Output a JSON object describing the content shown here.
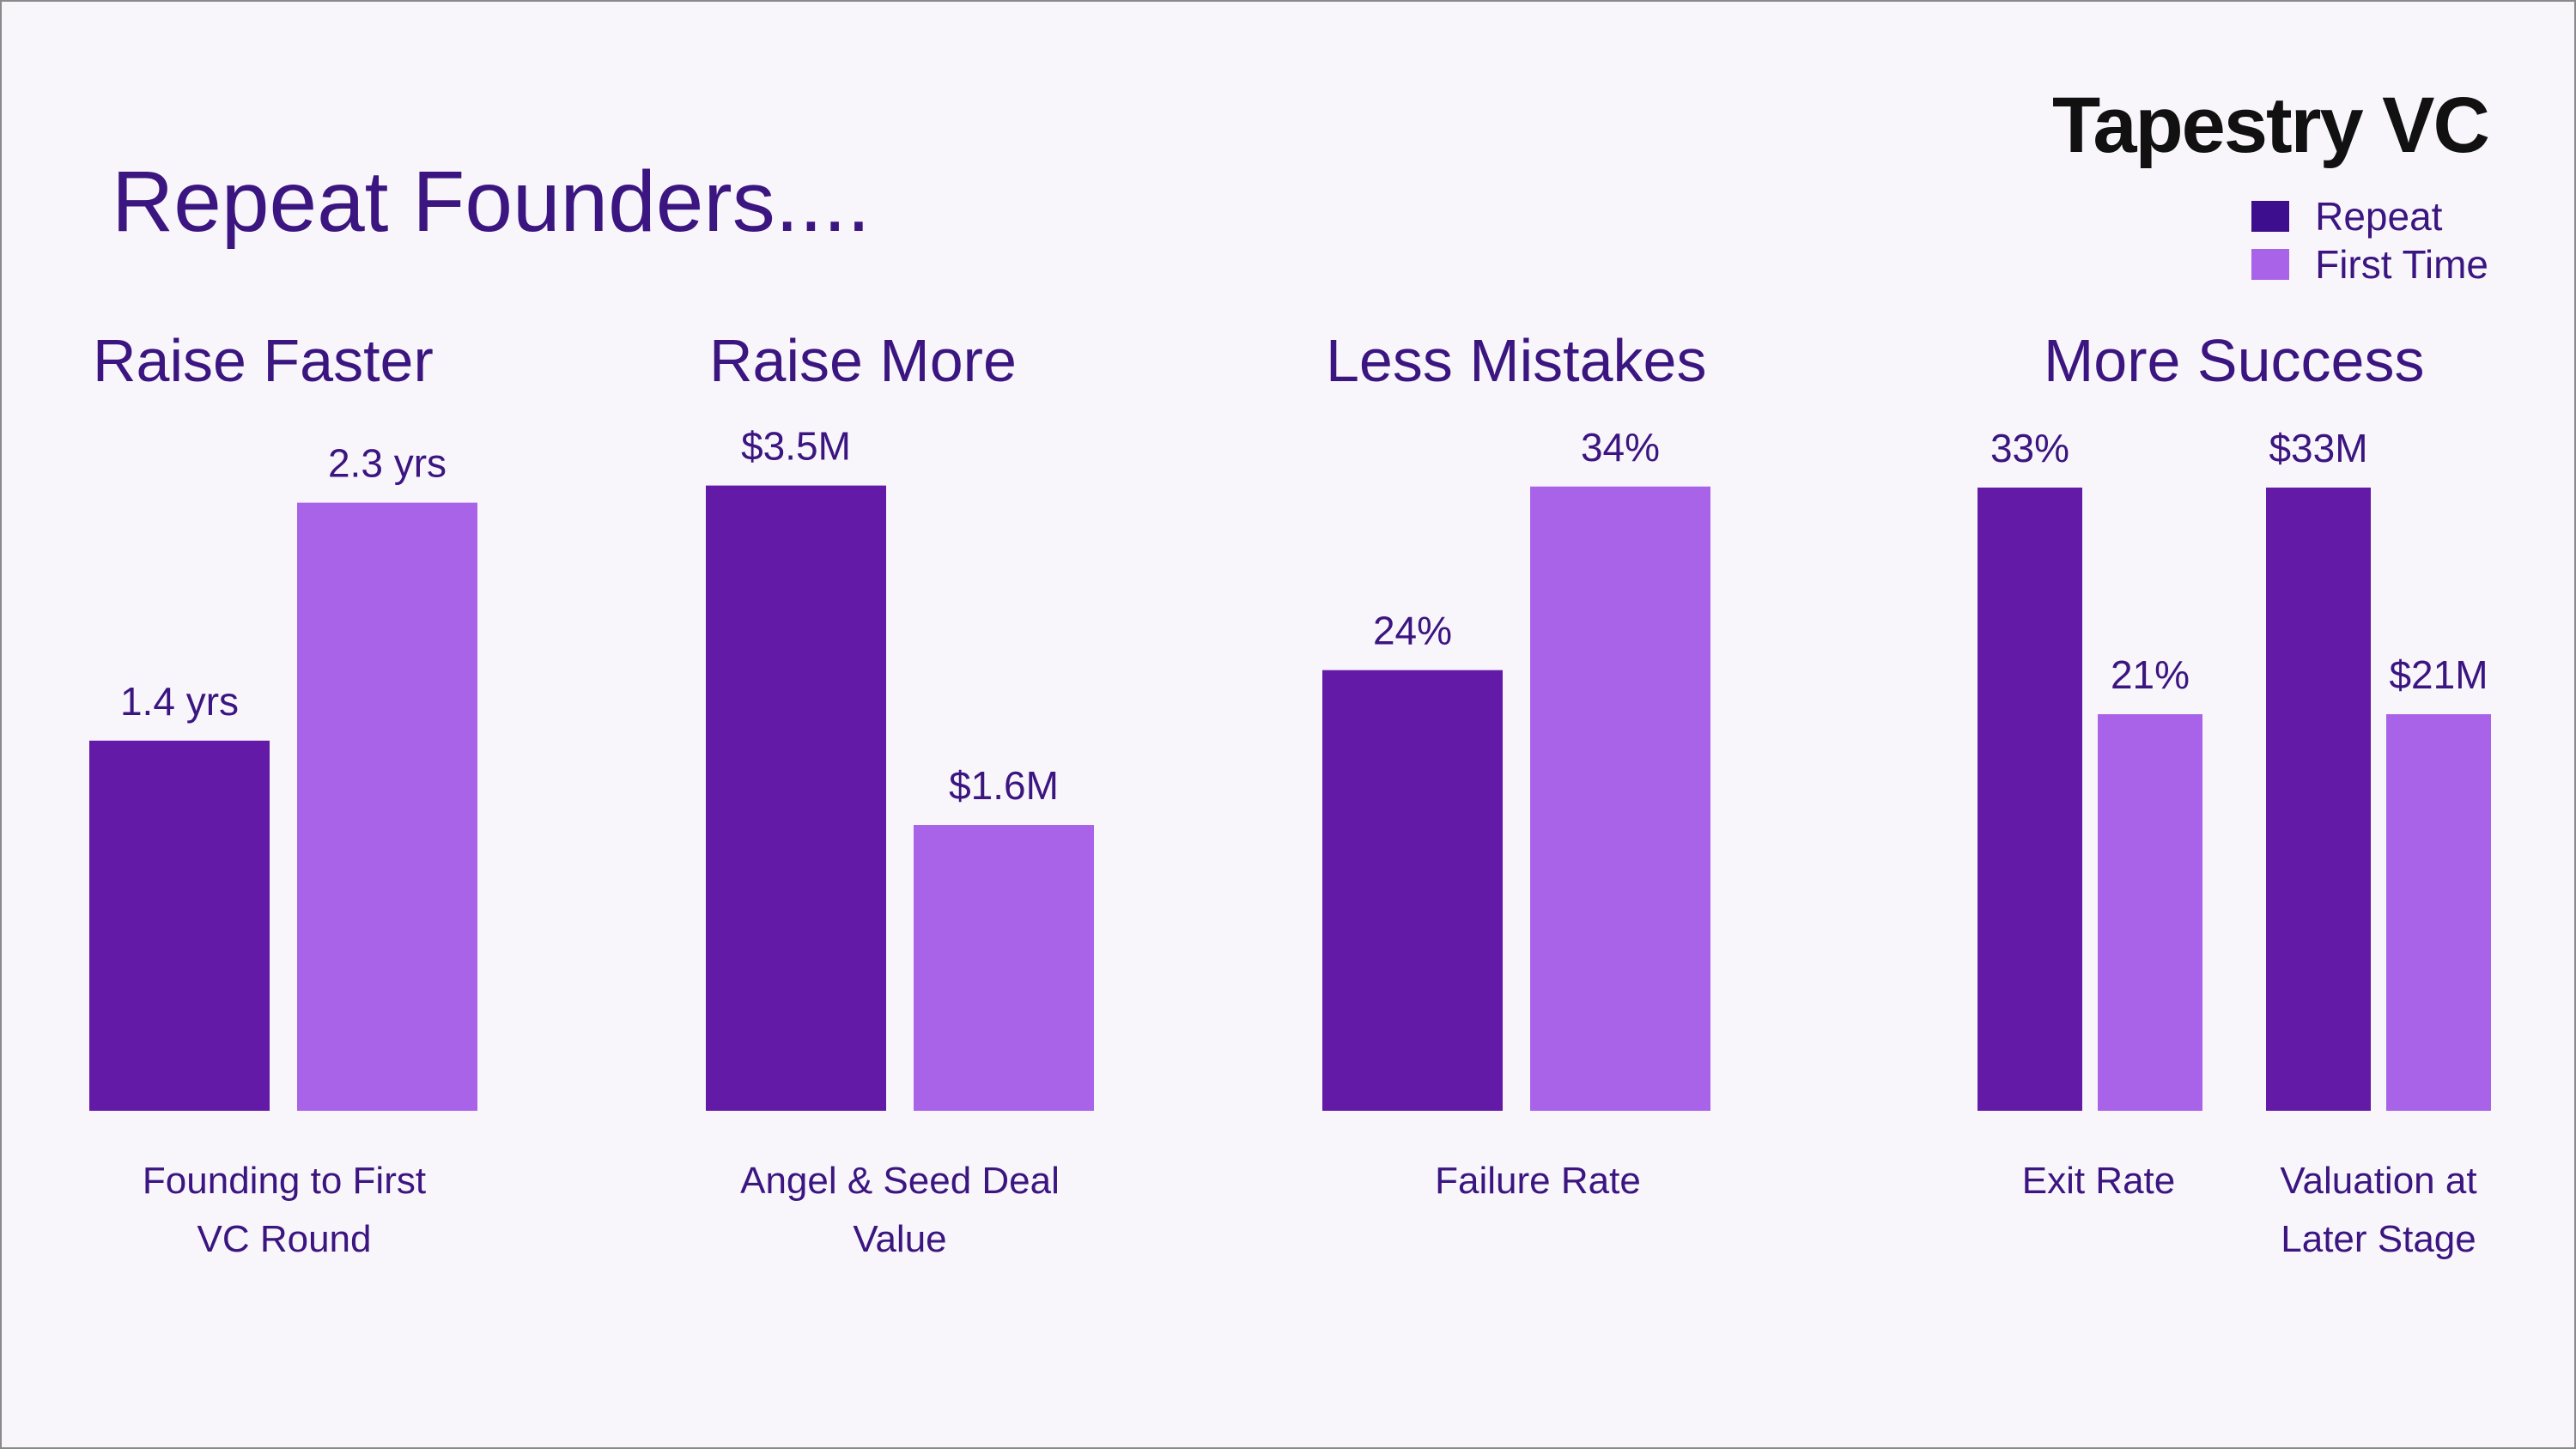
{
  "title": "Repeat Founders....",
  "brand": "Tapestry VC",
  "legend": {
    "repeat": "Repeat",
    "first_time": "First Time"
  },
  "colors": {
    "repeat": "#631aa6",
    "first_time": "#a963e8",
    "text": "#3b1580"
  },
  "chart_data": [
    {
      "type": "bar",
      "title": "Raise Faster",
      "categories": [
        [
          "Founding to First",
          "VC Round"
        ]
      ],
      "series": [
        {
          "name": "Repeat",
          "values": [
            1.4
          ],
          "labels": [
            "1.4 yrs"
          ]
        },
        {
          "name": "First Time",
          "values": [
            2.3
          ],
          "labels": [
            "2.3 yrs"
          ]
        }
      ],
      "ylim": [
        0,
        2.5
      ]
    },
    {
      "type": "bar",
      "title": "Raise More",
      "categories": [
        [
          "Angel & Seed Deal",
          "Value"
        ]
      ],
      "series": [
        {
          "name": "Repeat",
          "values": [
            3.5
          ],
          "labels": [
            "$3.5M"
          ]
        },
        {
          "name": "First Time",
          "values": [
            1.6
          ],
          "labels": [
            "$1.6M"
          ]
        }
      ],
      "ylim": [
        0,
        3.7
      ]
    },
    {
      "type": "bar",
      "title": "Less Mistakes",
      "categories": [
        [
          "Failure Rate"
        ]
      ],
      "series": [
        {
          "name": "Repeat",
          "values": [
            24
          ],
          "labels": [
            "24%"
          ]
        },
        {
          "name": "First Time",
          "values": [
            34
          ],
          "labels": [
            "34%"
          ]
        }
      ],
      "ylim": [
        0,
        36
      ]
    },
    {
      "type": "bar",
      "title": "More Success",
      "categories": [
        [
          "Exit Rate"
        ],
        [
          "Valuation at",
          "Later Stage"
        ]
      ],
      "series": [
        {
          "name": "Repeat",
          "values": [
            33,
            33
          ],
          "labels": [
            "33%",
            "$33M"
          ]
        },
        {
          "name": "First Time",
          "values": [
            21,
            21
          ],
          "labels": [
            "21%",
            "$21M"
          ]
        }
      ],
      "ylim": [
        0,
        35
      ]
    }
  ]
}
